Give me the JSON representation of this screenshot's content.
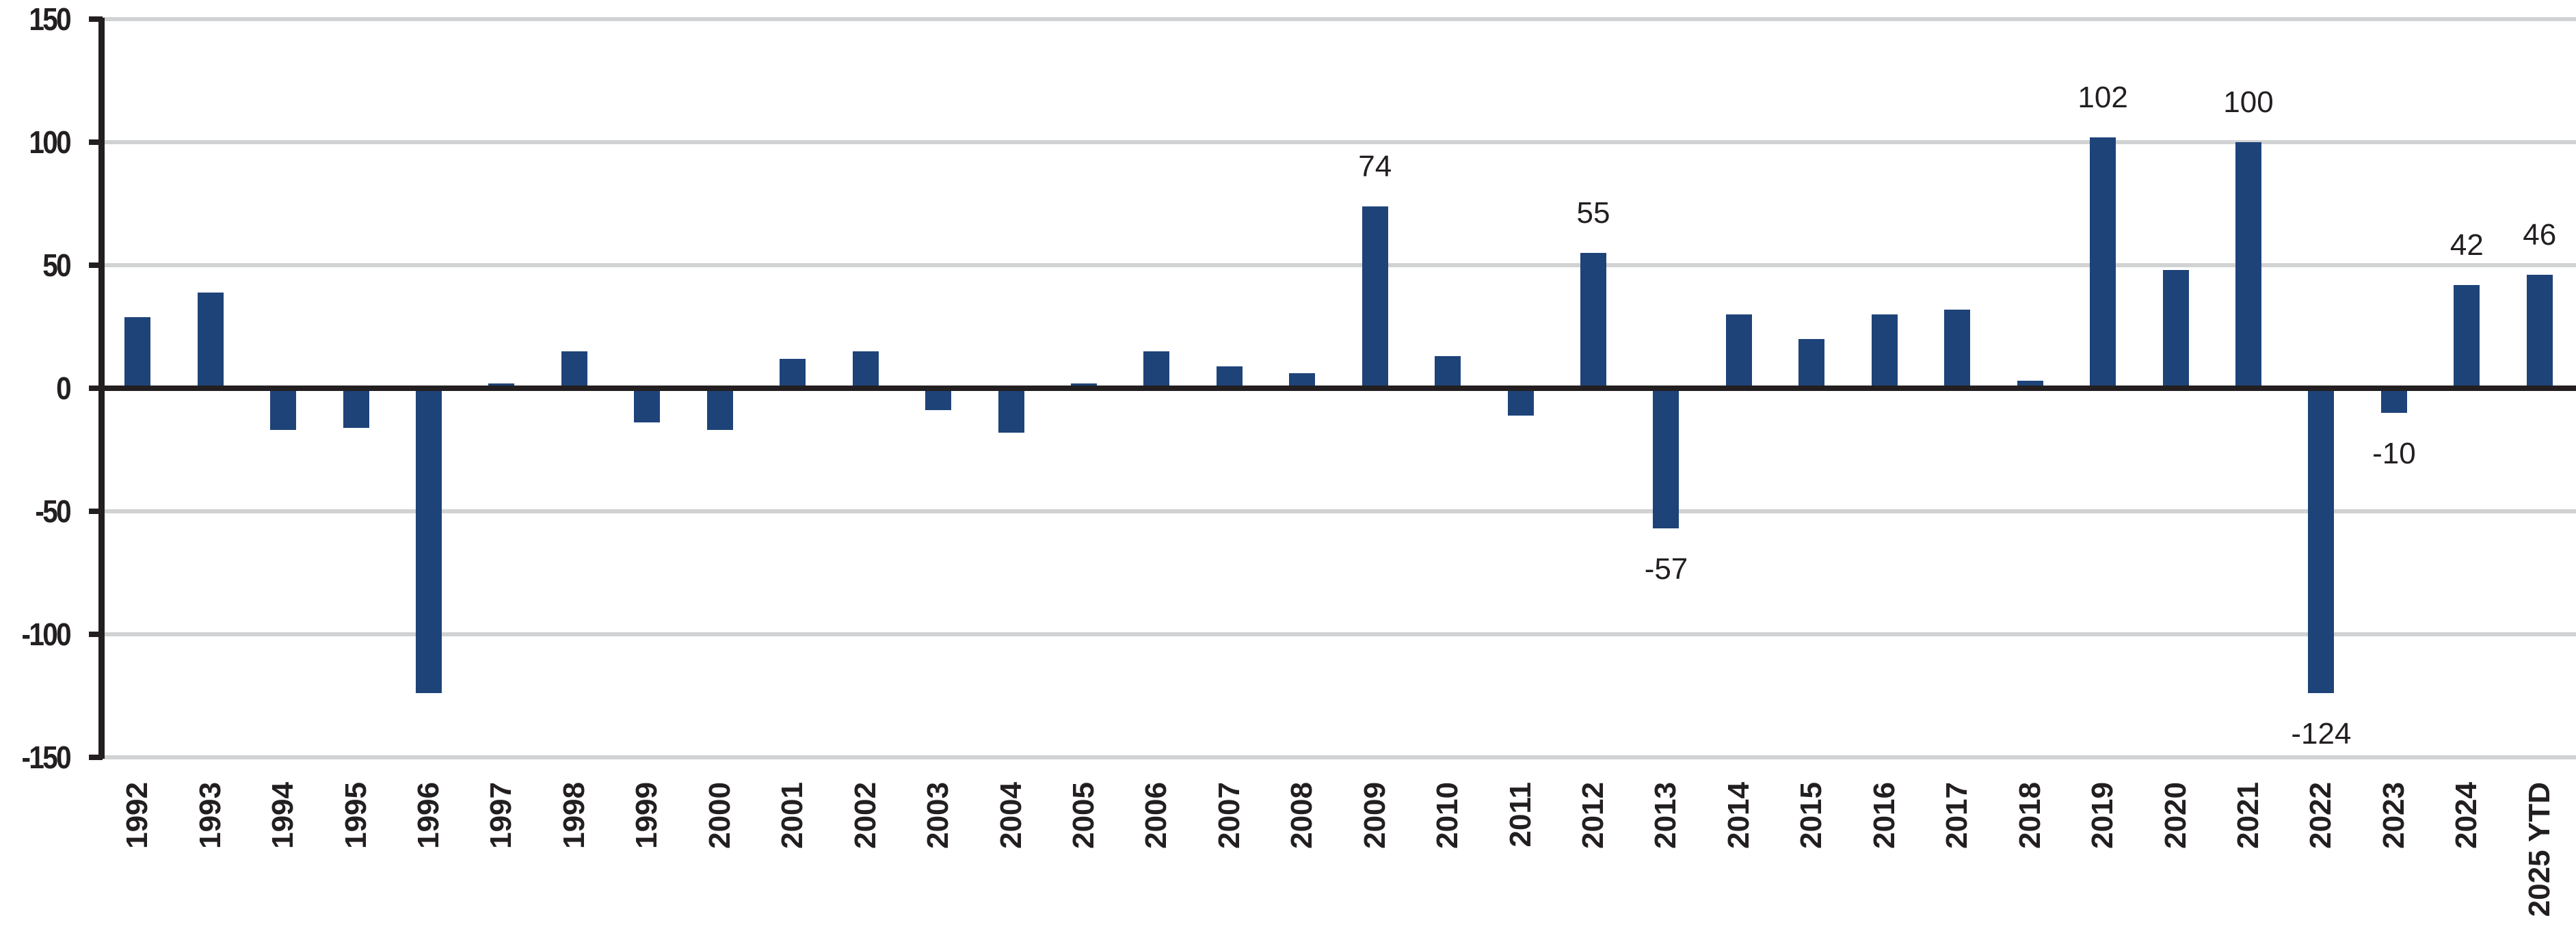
{
  "chart_data": {
    "type": "bar",
    "title": "",
    "xlabel": "",
    "ylabel": "",
    "ylim": [
      -150,
      150
    ],
    "yticks": [
      150,
      100,
      50,
      0,
      -50,
      -100,
      -150
    ],
    "ytick_labels": [
      "150",
      "100",
      "50",
      "0",
      "-50",
      "-100",
      "-150"
    ],
    "grid": true,
    "legend": null,
    "bar_color": "#1e4379",
    "gridline_color": "#d1d2d4",
    "axis_color": "#231f20",
    "categories": [
      "1992",
      "1993",
      "1994",
      "1995",
      "1996",
      "1997",
      "1998",
      "1999",
      "2000",
      "2001",
      "2002",
      "2003",
      "2004",
      "2005",
      "2006",
      "2007",
      "2008",
      "2009",
      "2010",
      "2011",
      "2012",
      "2013",
      "2014",
      "2015",
      "2016",
      "2017",
      "2018",
      "2019",
      "2020",
      "2021",
      "2022",
      "2023",
      "2024",
      "2025 YTD"
    ],
    "values": [
      29,
      39,
      -17,
      -16,
      -124,
      2,
      15,
      -14,
      -17,
      12,
      15,
      -9,
      -18,
      2,
      15,
      9,
      6,
      74,
      13,
      -11,
      55,
      -57,
      30,
      20,
      30,
      32,
      3,
      102,
      48,
      100,
      -124,
      -10,
      42,
      46
    ],
    "annotations": [
      {
        "category": "2009",
        "label": "74"
      },
      {
        "category": "2012",
        "label": "55"
      },
      {
        "category": "2013",
        "label": "-57"
      },
      {
        "category": "2019",
        "label": "102"
      },
      {
        "category": "2021",
        "label": "100"
      },
      {
        "category": "2022",
        "label": "-124"
      },
      {
        "category": "2023",
        "label": "-10"
      },
      {
        "category": "2024",
        "label": "42"
      },
      {
        "category": "2025 YTD",
        "label": "46"
      }
    ]
  }
}
